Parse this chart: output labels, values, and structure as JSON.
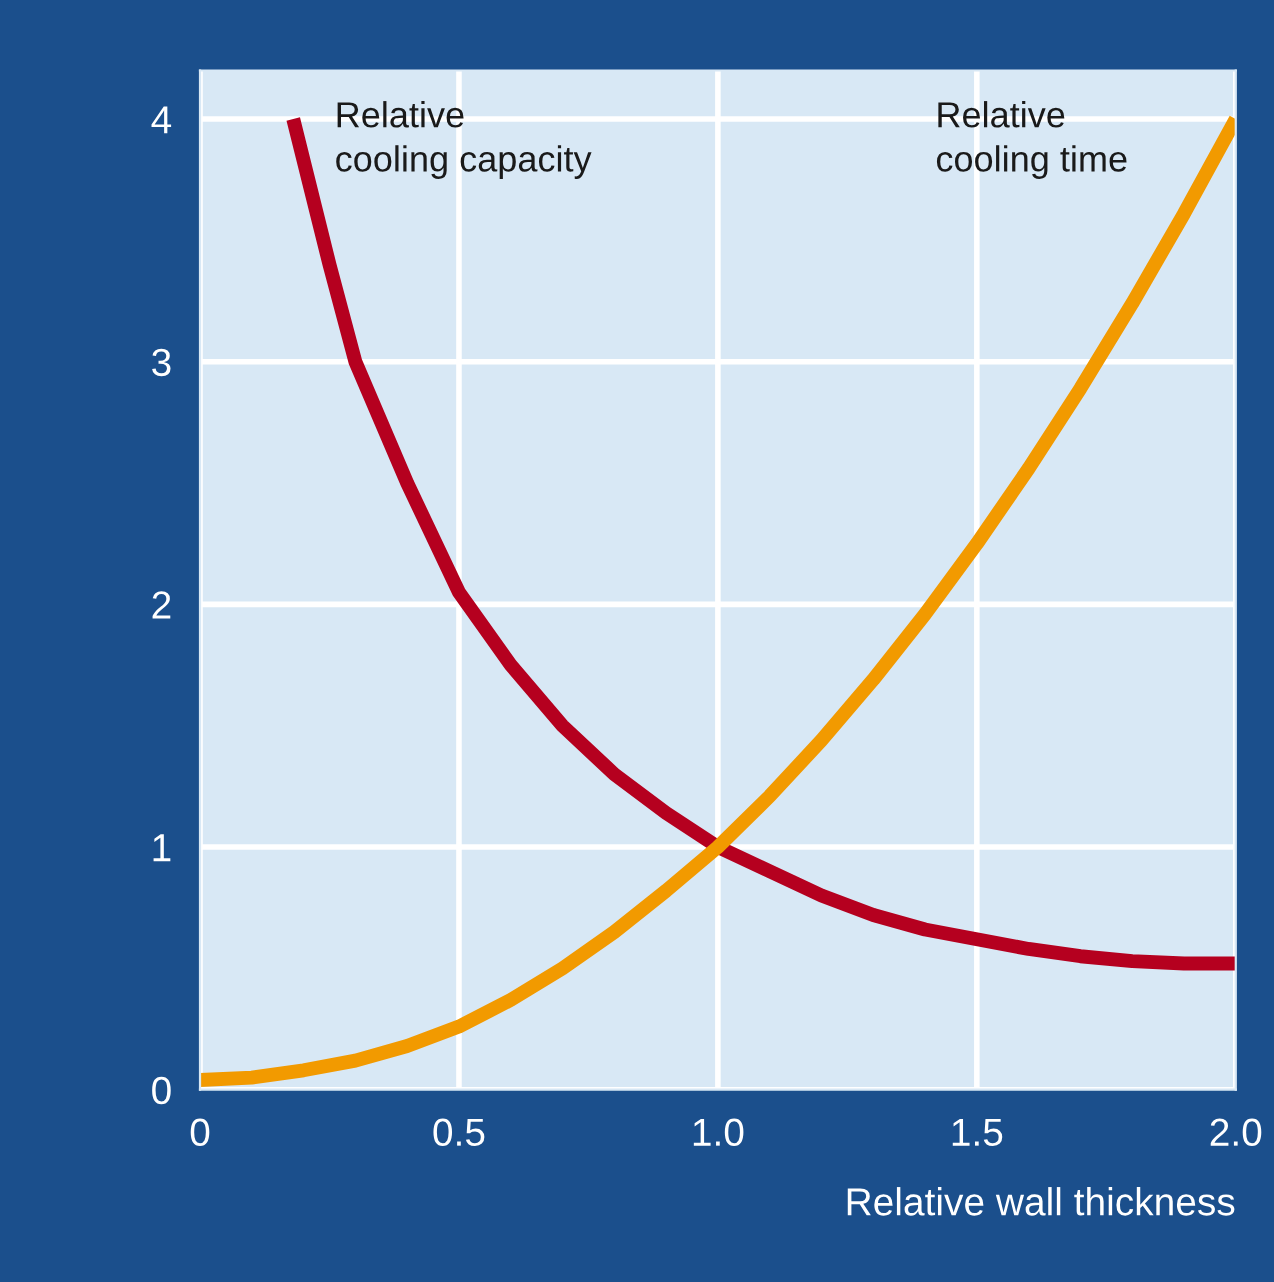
{
  "chart_data": {
    "type": "line",
    "xlabel": "Relative wall thickness",
    "xlim": [
      0,
      2.0
    ],
    "ylim": [
      0,
      4.2
    ],
    "xticks": [
      0,
      0.5,
      {
        "value": 1.0,
        "label": "1.0"
      },
      1.5,
      {
        "value": 2.0,
        "label": "2.0"
      }
    ],
    "yticks": [
      0,
      1,
      2,
      3,
      4
    ],
    "grid": true,
    "legend": false,
    "series": [
      {
        "name": "Relative\ncooling capacity",
        "color": "#b5001f",
        "x": [
          0.18,
          0.25,
          0.3,
          0.4,
          0.5,
          0.6,
          0.7,
          0.8,
          0.9,
          1.0,
          1.1,
          1.2,
          1.3,
          1.4,
          1.5,
          1.6,
          1.7,
          1.8,
          1.9,
          2.0
        ],
        "values": [
          4,
          3.4,
          3.0,
          2.5,
          2.05,
          1.75,
          1.5,
          1.3,
          1.14,
          1.0,
          0.9,
          0.8,
          0.72,
          0.66,
          0.62,
          0.58,
          0.55,
          0.53,
          0.52,
          0.52
        ]
      },
      {
        "name": "Relative\ncooling time",
        "color": "#f29a00",
        "x": [
          0,
          0.1,
          0.2,
          0.3,
          0.4,
          0.5,
          0.6,
          0.7,
          0.8,
          0.9,
          1.0,
          1.1,
          1.2,
          1.3,
          1.4,
          1.5,
          1.6,
          1.7,
          1.8,
          1.9,
          2.0
        ],
        "values": [
          0.04,
          0.05,
          0.08,
          0.12,
          0.18,
          0.26,
          0.37,
          0.5,
          0.65,
          0.82,
          1.0,
          1.21,
          1.44,
          1.69,
          1.96,
          2.25,
          2.56,
          2.89,
          3.24,
          3.61,
          4.0
        ]
      }
    ]
  }
}
